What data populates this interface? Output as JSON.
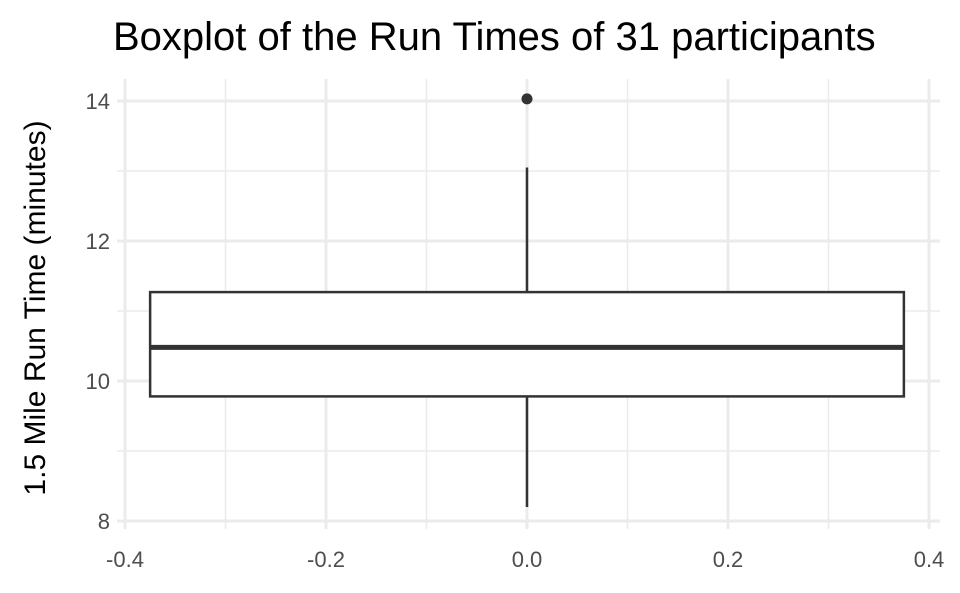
{
  "chart_data": {
    "type": "boxplot",
    "title": "Boxplot of the Run Times of 31 participants",
    "xlabel": "",
    "ylabel": "1.5 Mile Run Time (minutes)",
    "xlim": [
      -0.4,
      0.4
    ],
    "ylim": [
      8,
      14
    ],
    "x_ticks": [
      -0.4,
      -0.2,
      0.0,
      0.2,
      0.4
    ],
    "x_tick_labels": [
      "-0.4",
      "-0.2",
      "0.0",
      "0.2",
      "0.4"
    ],
    "y_ticks": [
      8,
      10,
      12,
      14
    ],
    "y_tick_labels": [
      "8",
      "10",
      "12",
      "14"
    ],
    "grid": true,
    "legend": "none",
    "box": {
      "x_center": 0.0,
      "x_left": -0.375,
      "x_right": 0.375,
      "whisker_low": 8.2,
      "q1": 9.78,
      "median": 10.48,
      "q3": 11.27,
      "whisker_high": 13.05,
      "outliers": [
        14.03
      ]
    },
    "colors": {
      "background": "#ffffff",
      "grid": "#ebebeb",
      "box_fill": "#ffffff",
      "box_stroke": "#333333",
      "text": "#4d4d4d"
    }
  }
}
